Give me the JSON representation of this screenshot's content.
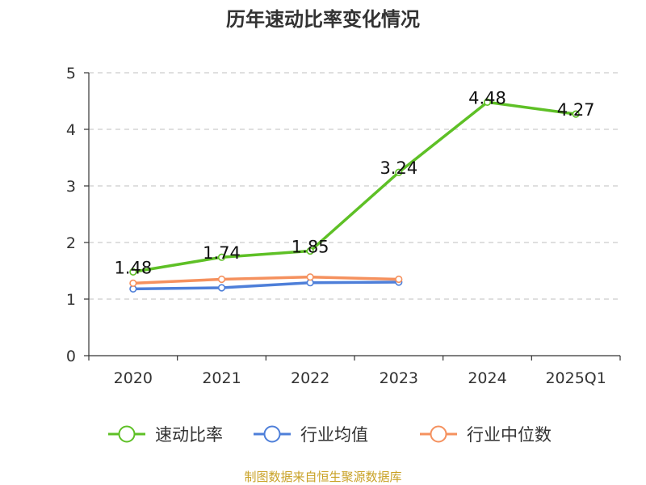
{
  "chart_data": {
    "type": "line",
    "title": "历年速动比率变化情况",
    "categories": [
      "2020",
      "2021",
      "2022",
      "2023",
      "2024",
      "2025Q1"
    ],
    "ylim": [
      0,
      5
    ],
    "yticks": [
      0,
      1,
      2,
      3,
      4,
      5
    ],
    "grid": true,
    "legend_position": "bottom",
    "series": [
      {
        "name": "速动比率",
        "color": "#5ec026",
        "values": [
          1.48,
          1.74,
          1.85,
          3.24,
          4.48,
          4.27
        ],
        "labels": [
          "1.48",
          "1.74",
          "1.85",
          "3.24",
          "4.48",
          "4.27"
        ]
      },
      {
        "name": "行业均值",
        "color": "#4e7fd9",
        "values": [
          1.18,
          1.2,
          1.29,
          1.3,
          null,
          null
        ]
      },
      {
        "name": "行业中位数",
        "color": "#f5915e",
        "values": [
          1.28,
          1.35,
          1.39,
          1.35,
          null,
          null
        ]
      }
    ],
    "source": "制图数据来自恒生聚源数据库"
  }
}
